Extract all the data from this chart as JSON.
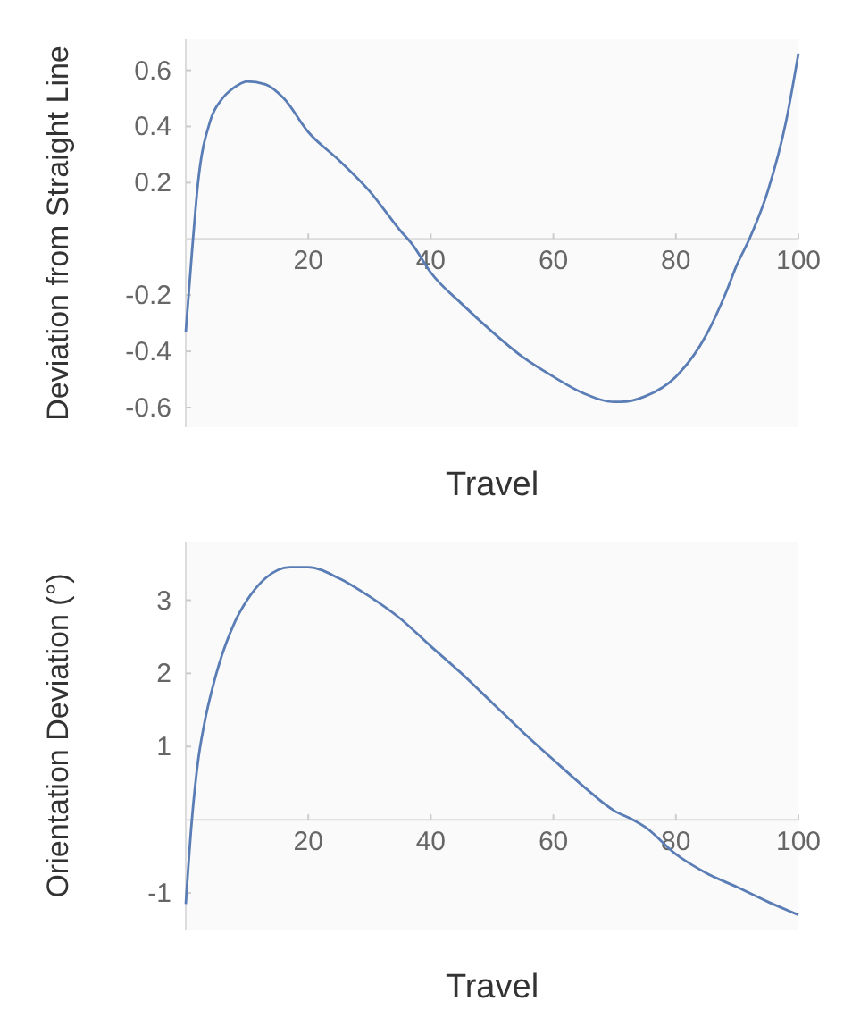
{
  "chart_data": [
    {
      "type": "line",
      "xlabel": "Travel",
      "ylabel": "Deviation from Straight Line",
      "xlim": [
        0,
        100
      ],
      "ylim": [
        -0.67,
        0.71
      ],
      "xticks": [
        20,
        40,
        60,
        80,
        100
      ],
      "yticks": [
        -0.6,
        -0.4,
        -0.2,
        0.2,
        0.4,
        0.6
      ],
      "grid": false,
      "series": [
        {
          "color": "#5a7db5",
          "x": [
            0,
            1,
            2,
            4,
            6,
            8,
            10,
            13,
            16,
            20,
            25,
            30,
            35,
            37,
            40,
            45,
            50,
            55,
            60,
            65,
            70,
            71,
            75,
            80,
            85,
            88,
            90,
            92,
            95,
            98,
            100
          ],
          "values": [
            -0.33,
            -0.05,
            0.2,
            0.42,
            0.5,
            0.54,
            0.56,
            0.55,
            0.5,
            0.38,
            0.28,
            0.17,
            0.03,
            -0.02,
            -0.12,
            -0.23,
            -0.33,
            -0.42,
            -0.49,
            -0.55,
            -0.58,
            -0.58,
            -0.56,
            -0.49,
            -0.34,
            -0.2,
            -0.09,
            0,
            0.17,
            0.42,
            0.66
          ]
        }
      ]
    },
    {
      "type": "line",
      "xlabel": "Travel",
      "ylabel": "Orientation Deviation (°)",
      "xlim": [
        0,
        100
      ],
      "ylim": [
        -1.5,
        3.8
      ],
      "xticks": [
        20,
        40,
        60,
        80,
        100
      ],
      "yticks": [
        -1,
        1,
        2,
        3
      ],
      "grid": false,
      "series": [
        {
          "color": "#5a7db5",
          "x": [
            0,
            1,
            2,
            3,
            5,
            8,
            10,
            13,
            17,
            20,
            25,
            30,
            35,
            40,
            45,
            50,
            55,
            60,
            65,
            70,
            73,
            75,
            80,
            85,
            90,
            95,
            100
          ],
          "values": [
            -1.15,
            0,
            0.8,
            1.3,
            2.0,
            2.7,
            3.0,
            3.3,
            3.45,
            3.45,
            3.3,
            3.05,
            2.75,
            2.37,
            2.0,
            1.6,
            1.2,
            0.82,
            0.45,
            0.12,
            0,
            -0.1,
            -0.47,
            -0.73,
            -0.92,
            -1.12,
            -1.3
          ]
        }
      ]
    }
  ]
}
